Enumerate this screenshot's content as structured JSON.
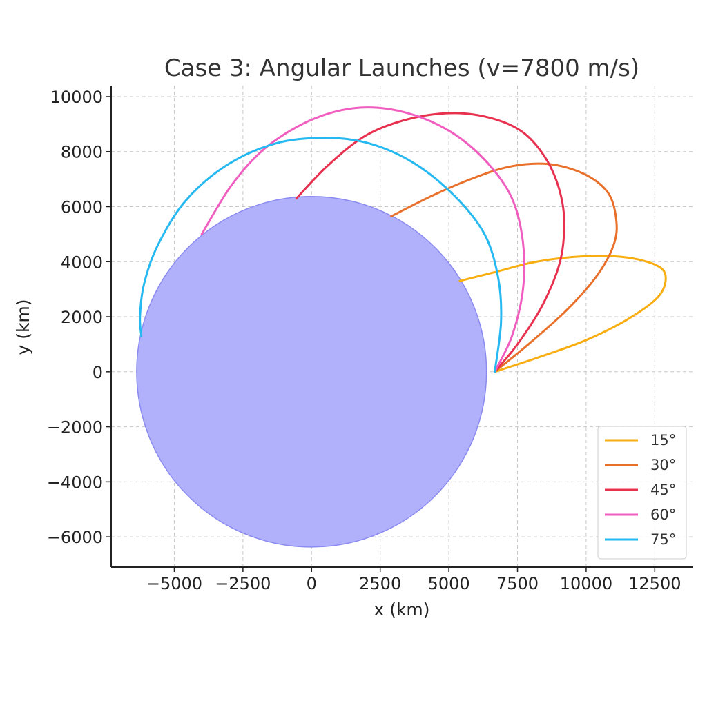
{
  "chart_data": {
    "type": "line",
    "title": "Case 3: Angular Launches (v=7800 m/s)",
    "xlabel": "x (km)",
    "ylabel": "y (km)",
    "xlim": [
      -7300,
      13900
    ],
    "ylim": [
      -7100,
      10400
    ],
    "xticks": [
      -5000,
      -2500,
      0,
      2500,
      5000,
      7500,
      10000,
      12500
    ],
    "yticks": [
      -6000,
      -4000,
      -2000,
      0,
      2000,
      4000,
      6000,
      8000,
      10000
    ],
    "xtick_labels": [
      "−5000",
      "−2500",
      "0",
      "2500",
      "5000",
      "7500",
      "10000",
      "12500"
    ],
    "ytick_labels": [
      "−6000",
      "−4000",
      "−2000",
      "0",
      "2000",
      "4000",
      "6000",
      "8000",
      "10000"
    ],
    "grid": true,
    "legend_position": "lower-right",
    "planet": {
      "center": [
        0,
        0
      ],
      "radius": 6371,
      "fill_color": "#b0b0fb",
      "edge_color": "#8a8af0"
    },
    "series": [
      {
        "name": "15°",
        "color": "#f8ad10",
        "x": [
          6671,
          8200,
          10000,
          11500,
          12600,
          12900,
          12600,
          11500,
          10000,
          8200,
          6600,
          5400
        ],
        "y": [
          0,
          500,
          1150,
          1900,
          2700,
          3400,
          3850,
          4150,
          4200,
          4000,
          3600,
          3300
        ]
      },
      {
        "name": "30°",
        "color": "#e8702a",
        "x": [
          6671,
          7900,
          9300,
          10400,
          11000,
          11100,
          10800,
          9900,
          8600,
          7200,
          5800,
          4400,
          2900
        ],
        "y": [
          0,
          1000,
          2250,
          3500,
          4600,
          5500,
          6500,
          7200,
          7550,
          7450,
          7000,
          6400,
          5650
        ]
      },
      {
        "name": "45°",
        "color": "#e8304f",
        "x": [
          6671,
          7500,
          8400,
          9050,
          9200,
          9000,
          8500,
          7700,
          6600,
          5200,
          3600,
          2000,
          600,
          -550
        ],
        "y": [
          0,
          1000,
          2400,
          4000,
          5500,
          6700,
          7800,
          8700,
          9200,
          9400,
          9200,
          8600,
          7500,
          6300
        ]
      },
      {
        "name": "60°",
        "color": "#f05ec0",
        "x": [
          6671,
          7300,
          7700,
          7700,
          7300,
          6400,
          5100,
          3500,
          1800,
          100,
          -1600,
          -2900,
          -4000
        ],
        "y": [
          0,
          1300,
          3000,
          4700,
          6300,
          7600,
          8700,
          9400,
          9600,
          9200,
          8200,
          6800,
          5000
        ]
      },
      {
        "name": "75°",
        "color": "#26b8f0",
        "x": [
          6671,
          6900,
          6800,
          6300,
          5200,
          3700,
          2100,
          500,
          -1300,
          -3100,
          -4600,
          -5600,
          -6100,
          -6250,
          -6200
        ],
        "y": [
          0,
          1800,
          3400,
          5000,
          6400,
          7600,
          8300,
          8500,
          8300,
          7500,
          6200,
          4600,
          3200,
          2000,
          1300
        ]
      }
    ]
  }
}
